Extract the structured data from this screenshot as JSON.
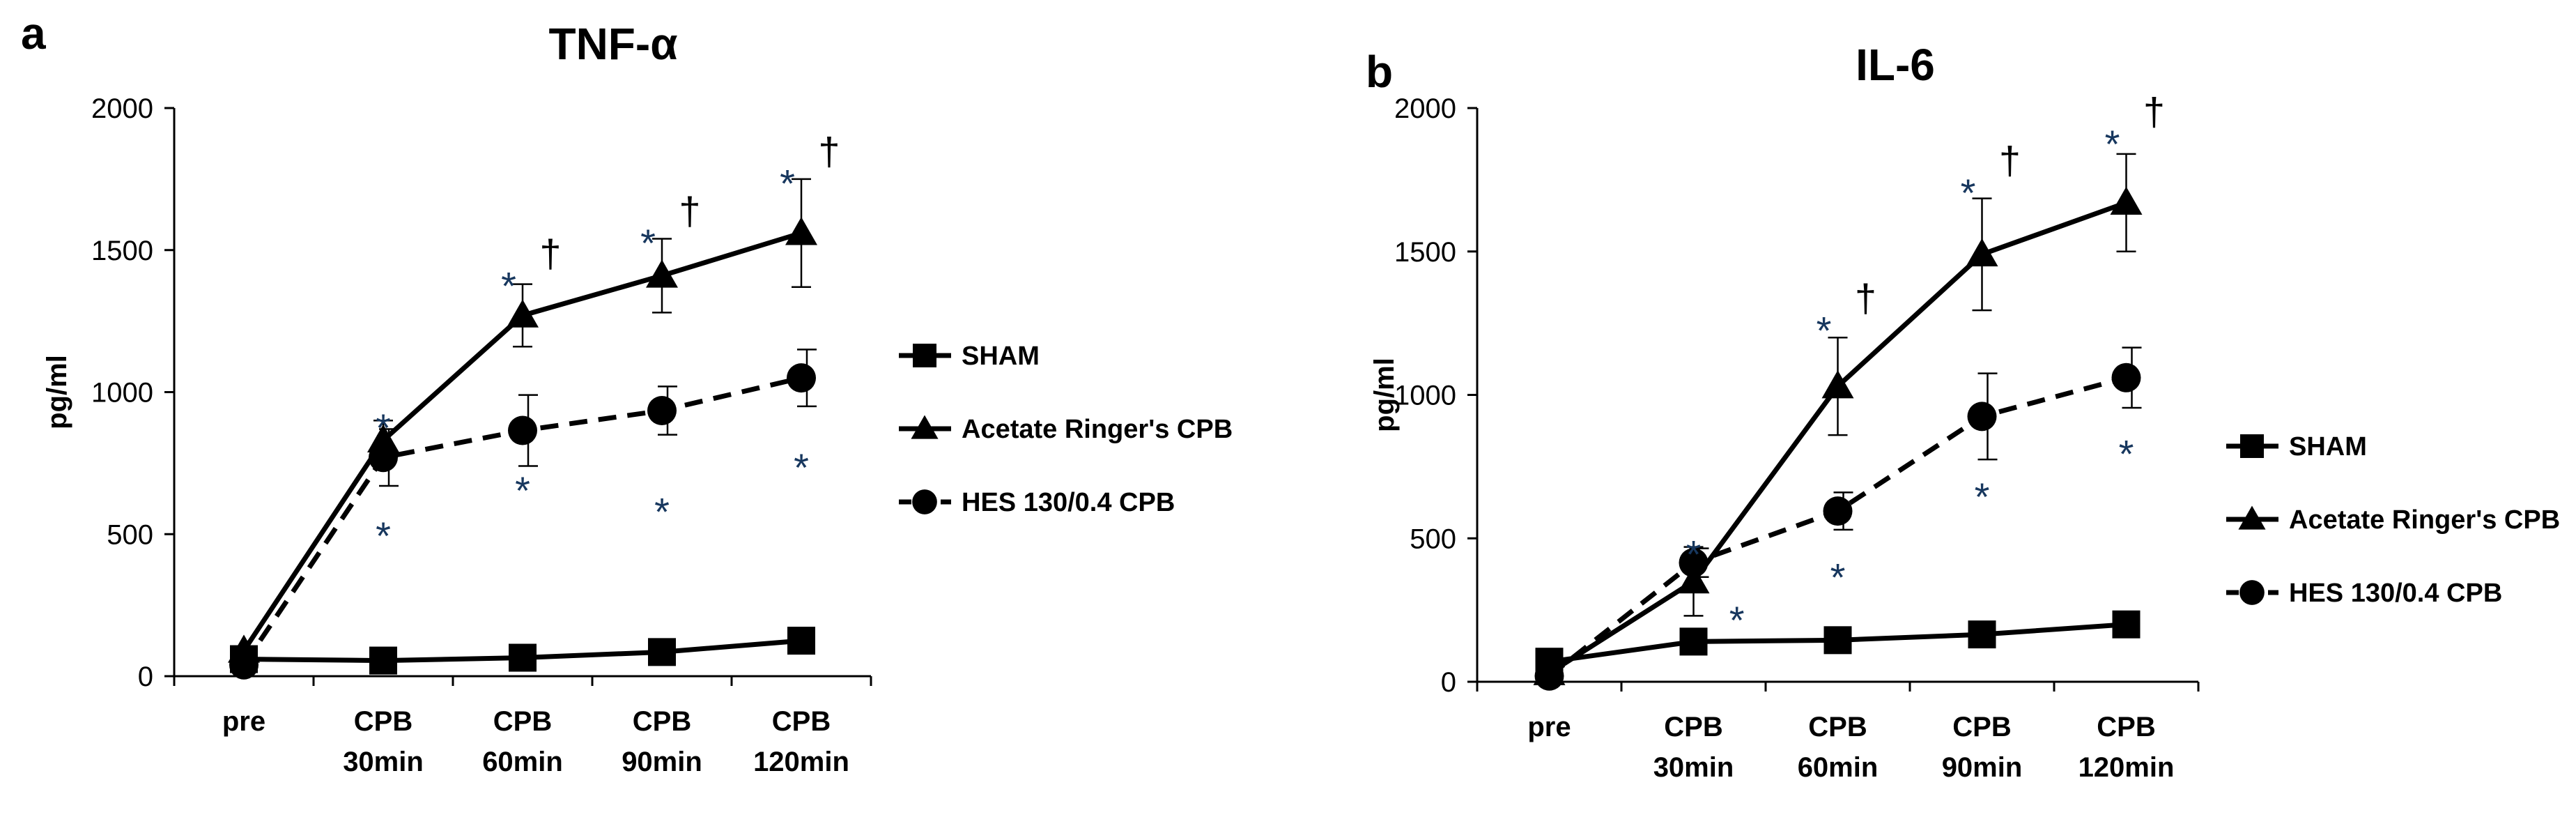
{
  "colors": {
    "line": "#000000",
    "asterisk": "#17375e"
  },
  "chart_data": [
    {
      "panel_label": "a",
      "type": "line",
      "title": "TNF-α",
      "ylabel": "pg/ml",
      "ylim": [
        0,
        2000
      ],
      "yticks": [
        "0",
        "500",
        "1000",
        "1500",
        "2000"
      ],
      "categories": [
        [
          "pre"
        ],
        [
          "CPB",
          "30min"
        ],
        [
          "CPB",
          "60min"
        ],
        [
          "CPB",
          "90min"
        ],
        [
          "CPB",
          "120min"
        ]
      ],
      "legend_position": "right",
      "series": [
        {
          "name": "SHAM",
          "marker": "square",
          "dash": false,
          "values": [
            60,
            55,
            65,
            85,
            125
          ],
          "errors": [
            0,
            0,
            0,
            0,
            0
          ]
        },
        {
          "name": "Acetate Ringer's CPB",
          "marker": "triangle",
          "dash": false,
          "values": [
            90,
            830,
            1270,
            1410,
            1560
          ],
          "errors": [
            0,
            70,
            110,
            130,
            190
          ]
        },
        {
          "name": "HES 130/0.4 CPB",
          "marker": "circle",
          "dash": true,
          "values": [
            40,
            770,
            865,
            935,
            1050
          ],
          "errors": [
            0,
            100,
            125,
            85,
            100
          ]
        }
      ],
      "annotations": [
        {
          "text": "*",
          "x": 1,
          "y": 920,
          "kind": "asterisk"
        },
        {
          "text": "*",
          "x": 1,
          "y": 540,
          "kind": "asterisk"
        },
        {
          "text": "*",
          "x": 2,
          "y": 1420,
          "kind": "asterisk"
        },
        {
          "text": "†",
          "x": 2,
          "y": 1440,
          "kind": "dagger"
        },
        {
          "text": "*",
          "x": 2,
          "y": 700,
          "kind": "asterisk"
        },
        {
          "text": "*",
          "x": 3,
          "y": 1570,
          "kind": "asterisk"
        },
        {
          "text": "†",
          "x": 3,
          "y": 1590,
          "kind": "dagger"
        },
        {
          "text": "*",
          "x": 3,
          "y": 625,
          "kind": "asterisk"
        },
        {
          "text": "*",
          "x": 4,
          "y": 1780,
          "kind": "asterisk"
        },
        {
          "text": "†",
          "x": 4,
          "y": 1800,
          "kind": "dagger"
        },
        {
          "text": "*",
          "x": 4,
          "y": 780,
          "kind": "asterisk"
        }
      ]
    },
    {
      "panel_label": "b",
      "type": "line",
      "title": "IL-6",
      "ylabel": "pg/ml",
      "ylim": [
        0,
        2000
      ],
      "yticks": [
        "0",
        "500",
        "1000",
        "1500",
        "2000"
      ],
      "categories": [
        [
          "pre"
        ],
        [
          "CPB",
          "30min"
        ],
        [
          "CPB",
          "60min"
        ],
        [
          "CPB",
          "90min"
        ],
        [
          "CPB",
          "120min"
        ]
      ],
      "legend_position": "right",
      "series": [
        {
          "name": "SHAM",
          "marker": "square",
          "dash": false,
          "values": [
            70,
            140,
            145,
            165,
            200
          ],
          "errors": [
            0,
            0,
            0,
            0,
            0
          ]
        },
        {
          "name": "Acetate Ringer's CPB",
          "marker": "triangle",
          "dash": false,
          "values": [
            30,
            350,
            1030,
            1490,
            1670
          ],
          "errors": [
            0,
            120,
            170,
            195,
            170
          ]
        },
        {
          "name": "HES 130/0.4 CPB",
          "marker": "circle",
          "dash": true,
          "values": [
            20,
            415,
            595,
            925,
            1060
          ],
          "errors": [
            0,
            50,
            65,
            150,
            105
          ]
        }
      ],
      "annotations": [
        {
          "text": "*",
          "x": 1,
          "y": 490,
          "kind": "asterisk"
        },
        {
          "text": "*",
          "x": 1,
          "y": 260,
          "kind": "asterisk",
          "dx": 0.3
        },
        {
          "text": "*",
          "x": 2,
          "y": 1270,
          "kind": "asterisk"
        },
        {
          "text": "†",
          "x": 2,
          "y": 1290,
          "kind": "dagger"
        },
        {
          "text": "*",
          "x": 2,
          "y": 410,
          "kind": "asterisk"
        },
        {
          "text": "*",
          "x": 3,
          "y": 1750,
          "kind": "asterisk"
        },
        {
          "text": "†",
          "x": 3,
          "y": 1770,
          "kind": "dagger"
        },
        {
          "text": "*",
          "x": 3,
          "y": 690,
          "kind": "asterisk"
        },
        {
          "text": "*",
          "x": 4,
          "y": 1920,
          "kind": "asterisk"
        },
        {
          "text": "†",
          "x": 4,
          "y": 1940,
          "kind": "dagger"
        },
        {
          "text": "*",
          "x": 4,
          "y": 840,
          "kind": "asterisk"
        }
      ]
    }
  ]
}
